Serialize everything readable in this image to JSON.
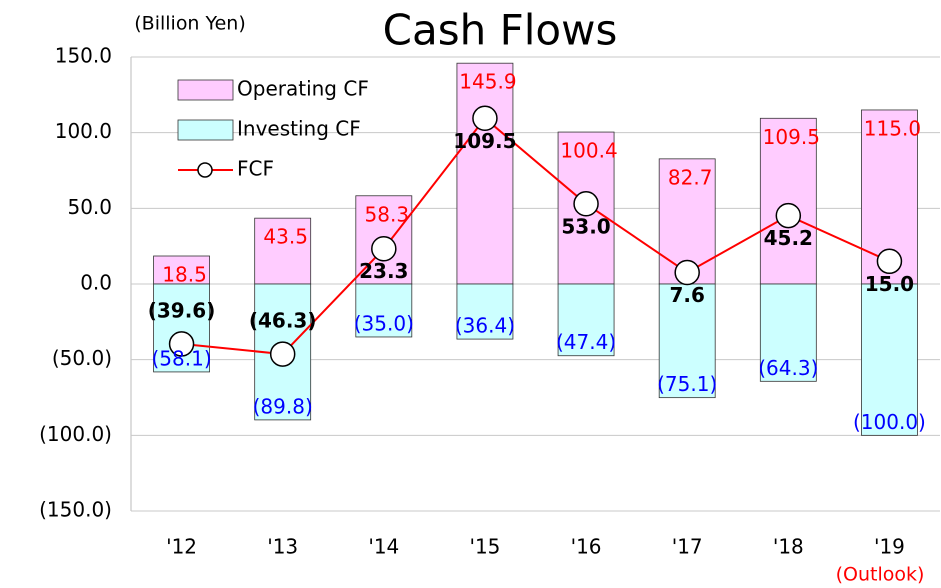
{
  "chart_data": {
    "type": "bar_line",
    "title": "Cash Flows",
    "unit_label": "(Billion Yen)",
    "annotation": "(Outlook)",
    "categories": [
      "'12",
      "'13",
      "'14",
      "'15",
      "'16",
      "'17",
      "'18",
      "'19"
    ],
    "series": [
      {
        "name": "Operating CF",
        "type": "bar",
        "color": "#ffccff",
        "label_color": "#ff0000",
        "values": [
          18.5,
          43.5,
          58.3,
          145.9,
          100.4,
          82.7,
          109.5,
          115.0
        ],
        "value_labels": [
          "18.5",
          "43.5",
          "58.3",
          "145.9",
          "100.4",
          "82.7",
          "109.5",
          "115.0"
        ]
      },
      {
        "name": "Investing CF",
        "type": "bar",
        "color": "#ccffff",
        "label_color": "#0000ff",
        "values": [
          -58.1,
          -89.8,
          -35.0,
          -36.4,
          -47.4,
          -75.1,
          -64.3,
          -100.0
        ],
        "value_labels": [
          "(58.1)",
          "(89.8)",
          "(35.0)",
          "(36.4)",
          "(47.4)",
          "(75.1)",
          "(64.3)",
          "(100.0)"
        ]
      },
      {
        "name": "FCF",
        "type": "line",
        "color": "#ff0000",
        "label_color": "#000000",
        "values": [
          -39.6,
          -46.3,
          23.3,
          109.5,
          53.0,
          7.6,
          45.2,
          15.0
        ],
        "value_labels": [
          "(39.6)",
          "(46.3)",
          "23.3",
          "109.5",
          "53.0",
          "7.6",
          "45.2",
          "15.0"
        ]
      }
    ],
    "ylim": [
      -150,
      150
    ],
    "yticks": [
      {
        "value": 150,
        "label": "150.0"
      },
      {
        "value": 100,
        "label": "100.0"
      },
      {
        "value": 50,
        "label": "50.0"
      },
      {
        "value": 0,
        "label": "0.0"
      },
      {
        "value": -50,
        "label": "(50.0)"
      },
      {
        "value": -100,
        "label": "(100.0)"
      },
      {
        "value": -150,
        "label": "(150.0)"
      }
    ],
    "grid": true,
    "legend": "upper left"
  }
}
